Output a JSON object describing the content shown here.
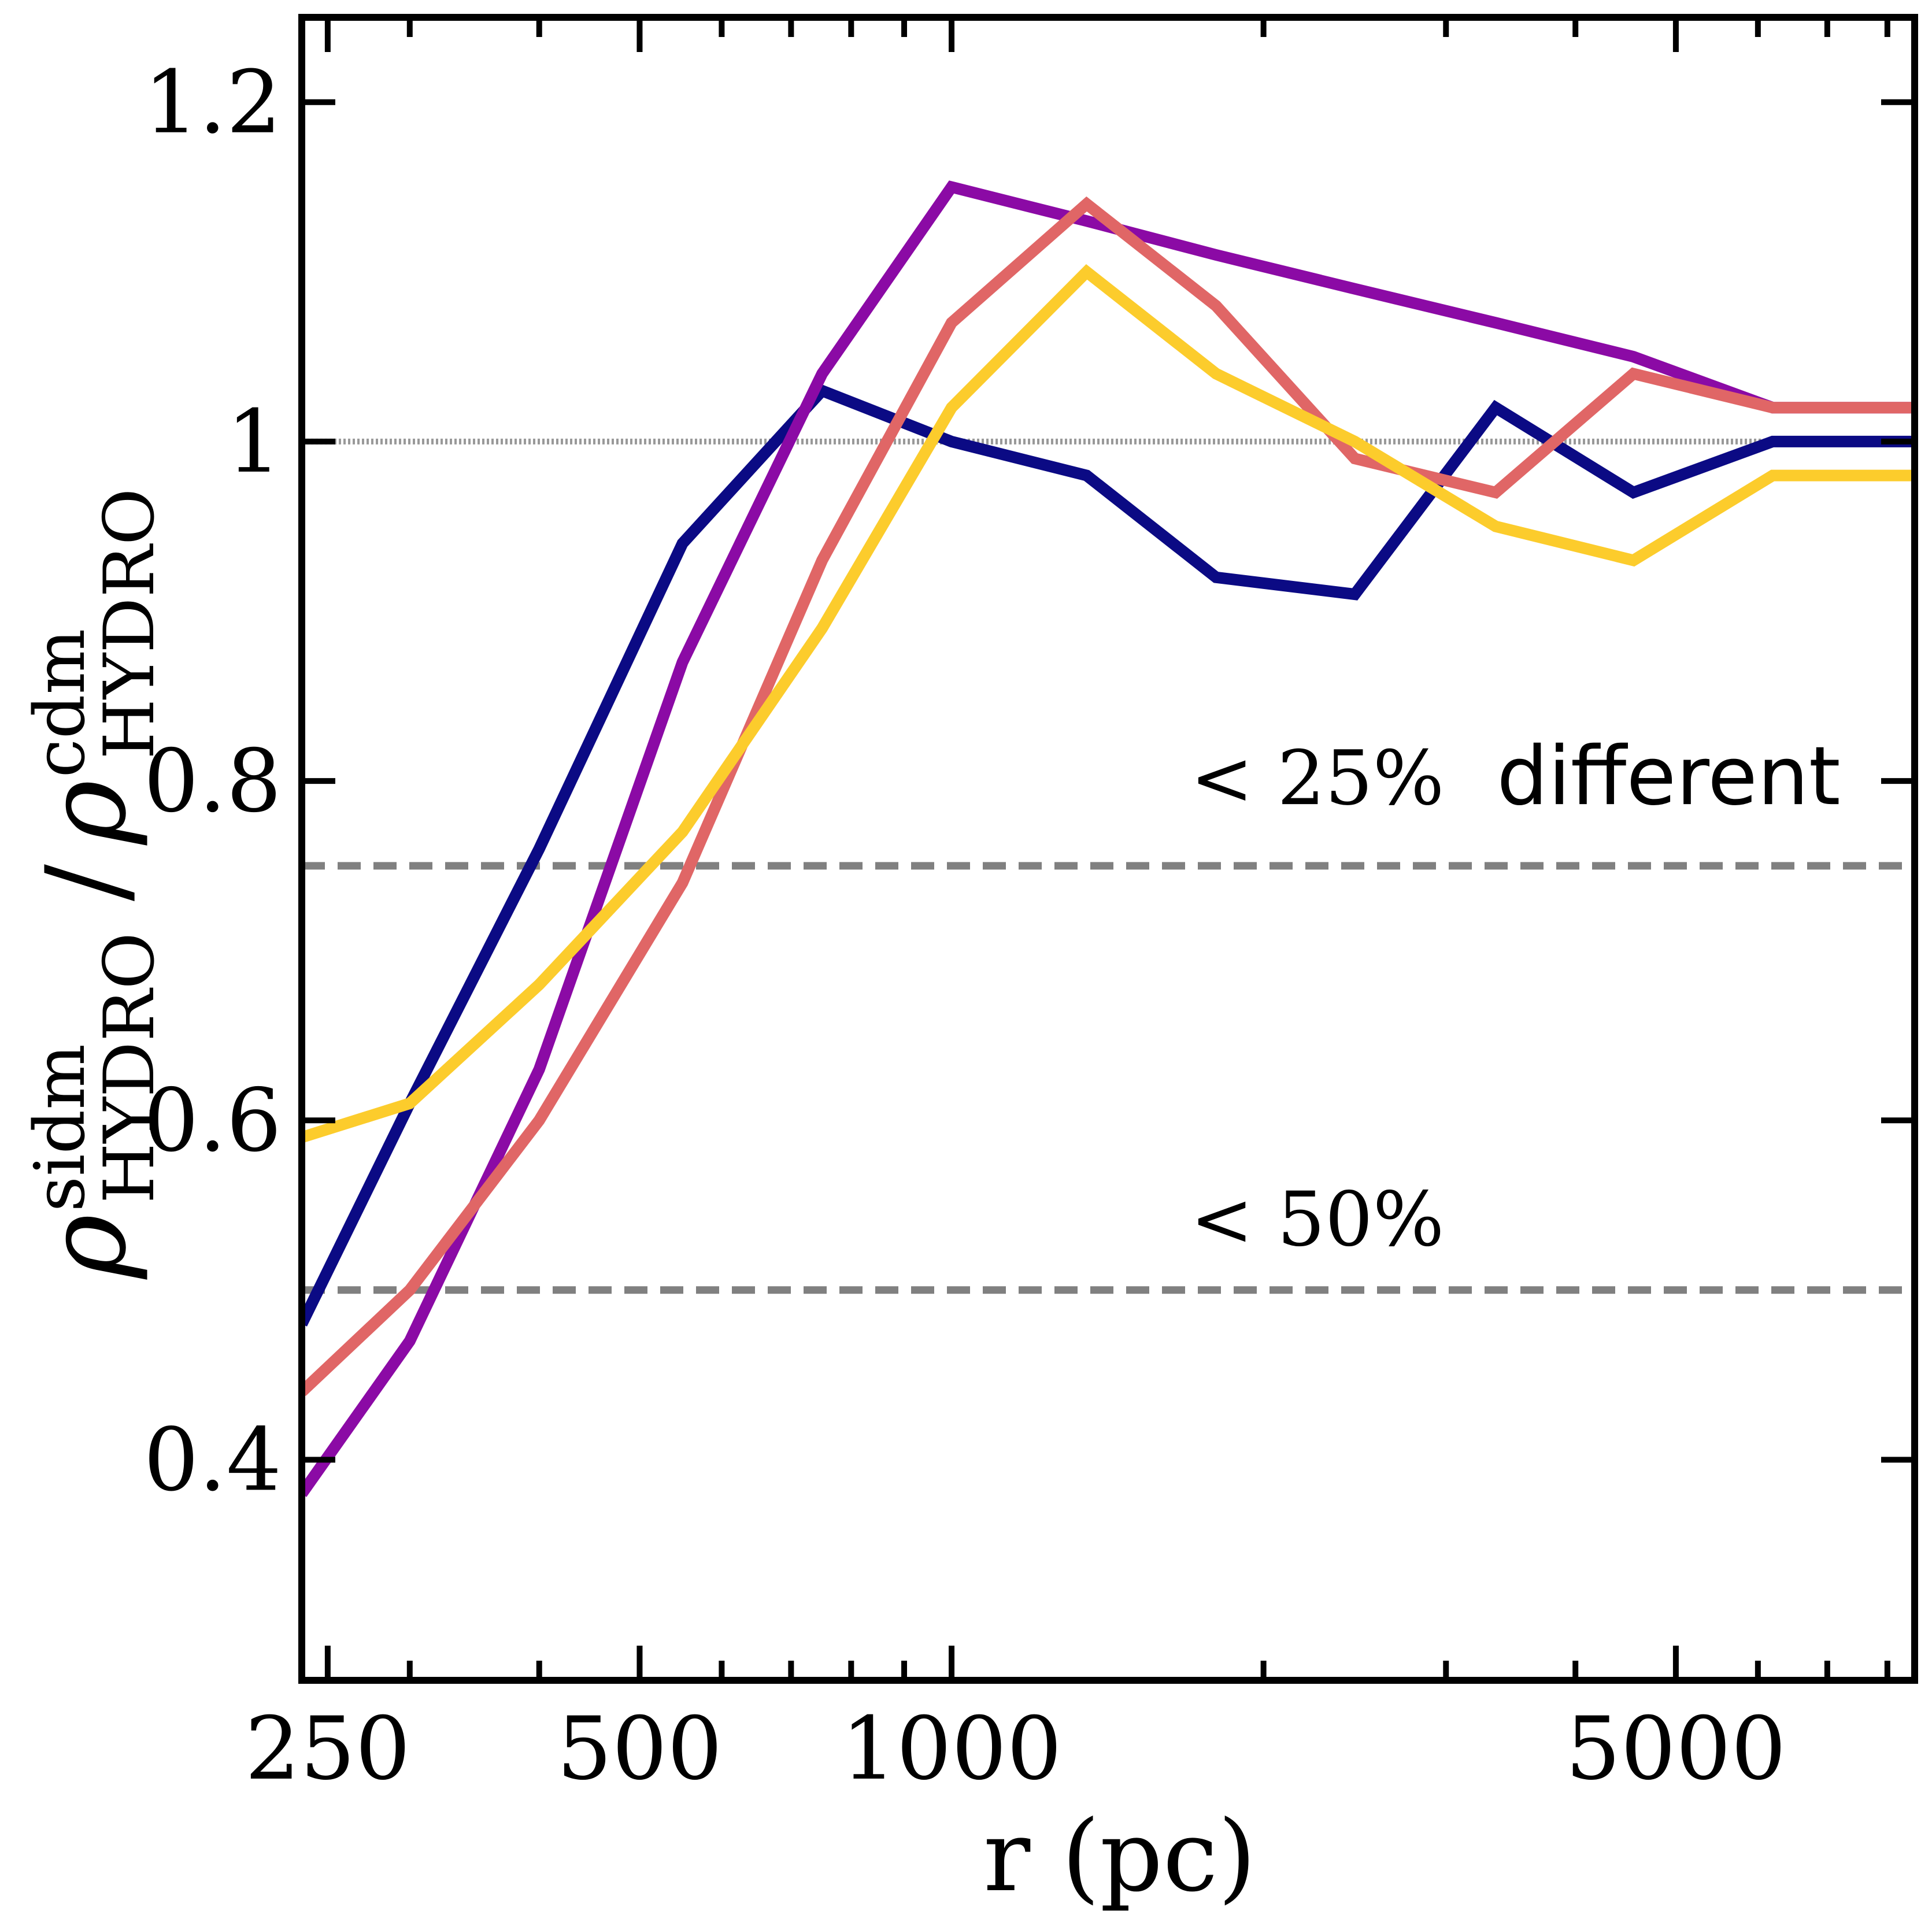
{
  "chart_data": {
    "type": "line",
    "title": "",
    "xlabel": "r (pc)",
    "ylabel": {
      "numerator_symbol": "ρ",
      "numerator_superscript": "sidm",
      "numerator_subscript": "HYDRO",
      "separator": "/",
      "denominator_symbol": "ρ",
      "denominator_superscript": "cdm",
      "denominator_subscript": "HYDRO"
    },
    "xscale": "log",
    "xlim": [
      236,
      8500
    ],
    "ylim": [
      0.27,
      1.25
    ],
    "xticks": [
      250,
      500,
      1000,
      5000
    ],
    "xtick_labels": [
      "250",
      "500",
      "1000",
      "5000"
    ],
    "x_minor_ticks": [
      300,
      400,
      600,
      700,
      800,
      900,
      2000,
      3000,
      4000,
      6000,
      7000,
      8000
    ],
    "yticks": [
      0.4,
      0.6,
      0.8,
      1.0,
      1.2
    ],
    "ytick_labels": [
      "0.4",
      "0.6",
      "0.8",
      "1",
      "1.2"
    ],
    "reference_lines": [
      {
        "y": 1.0,
        "style": "dotted",
        "color": "#999999"
      },
      {
        "y": 0.75,
        "style": "dashed",
        "color": "#808080"
      },
      {
        "y": 0.5,
        "style": "dashed",
        "color": "#808080"
      }
    ],
    "annotations": [
      {
        "id": "a25",
        "math": "< 25%",
        "text": "different",
        "x": 1700,
        "y": 0.8
      },
      {
        "id": "a50",
        "math": "< 50%",
        "x": 1700,
        "y": 0.54
      }
    ],
    "series": [
      {
        "name": "navy",
        "color": "#0b0a84",
        "x": [
          236,
          300,
          400,
          550,
          750,
          1000,
          1350,
          1800,
          2450,
          3350,
          4550,
          6200,
          8500
        ],
        "y": [
          0.48,
          0.61,
          0.76,
          0.94,
          1.03,
          1.0,
          0.98,
          0.92,
          0.91,
          1.02,
          0.97,
          1.0,
          1.0
        ]
      },
      {
        "name": "purple",
        "color": "#8b0aa5",
        "x": [
          236,
          300,
          400,
          550,
          750,
          1000,
          1350,
          1800,
          2450,
          3350,
          4550,
          6200,
          8500
        ],
        "y": [
          0.38,
          0.47,
          0.63,
          0.87,
          1.04,
          1.15,
          1.13,
          1.11,
          1.09,
          1.07,
          1.05,
          1.02,
          1.02
        ]
      },
      {
        "name": "salmon",
        "color": "#e06666",
        "x": [
          236,
          300,
          400,
          550,
          750,
          1000,
          1350,
          1800,
          2450,
          3350,
          4550,
          6200,
          8500
        ],
        "y": [
          0.44,
          0.5,
          0.6,
          0.74,
          0.93,
          1.07,
          1.14,
          1.08,
          0.99,
          0.97,
          1.04,
          1.02,
          1.02
        ]
      },
      {
        "name": "yellow",
        "color": "#fccc2c",
        "x": [
          236,
          300,
          400,
          550,
          750,
          1000,
          1350,
          1800,
          2450,
          3350,
          4550,
          6200,
          8500
        ],
        "y": [
          0.59,
          0.61,
          0.68,
          0.77,
          0.89,
          1.02,
          1.1,
          1.04,
          1.0,
          0.95,
          0.93,
          0.98,
          0.98
        ]
      }
    ]
  }
}
